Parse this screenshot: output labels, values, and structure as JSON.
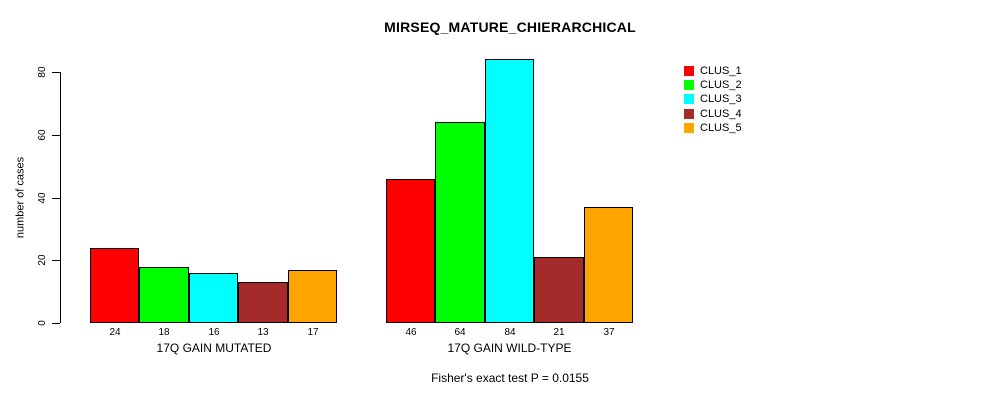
{
  "chart_data": {
    "type": "bar",
    "title": "MIRSEQ_MATURE_CHIERARCHICAL",
    "ylabel": "number of cases",
    "xlabel": "",
    "caption": "Fisher's exact test P = 0.0155",
    "ylim": [
      0,
      80
    ],
    "yticks": [
      0,
      20,
      40,
      60,
      80
    ],
    "grid": false,
    "legend_position": "top-right",
    "bar_border_color": "#000000",
    "background_color": "#ffffff",
    "categories": [
      "17Q GAIN MUTATED",
      "17Q GAIN WILD-TYPE"
    ],
    "series": [
      {
        "name": "CLUS_1",
        "color": "#FF0000",
        "values": [
          24,
          46
        ]
      },
      {
        "name": "CLUS_2",
        "color": "#00FF00",
        "values": [
          18,
          64
        ]
      },
      {
        "name": "CLUS_3",
        "color": "#00FFFF",
        "values": [
          16,
          84
        ]
      },
      {
        "name": "CLUS_4",
        "color": "#A52A2A",
        "values": [
          13,
          21
        ]
      },
      {
        "name": "CLUS_5",
        "color": "#FFA500",
        "values": [
          17,
          37
        ]
      }
    ],
    "value_labels_shown": true
  }
}
